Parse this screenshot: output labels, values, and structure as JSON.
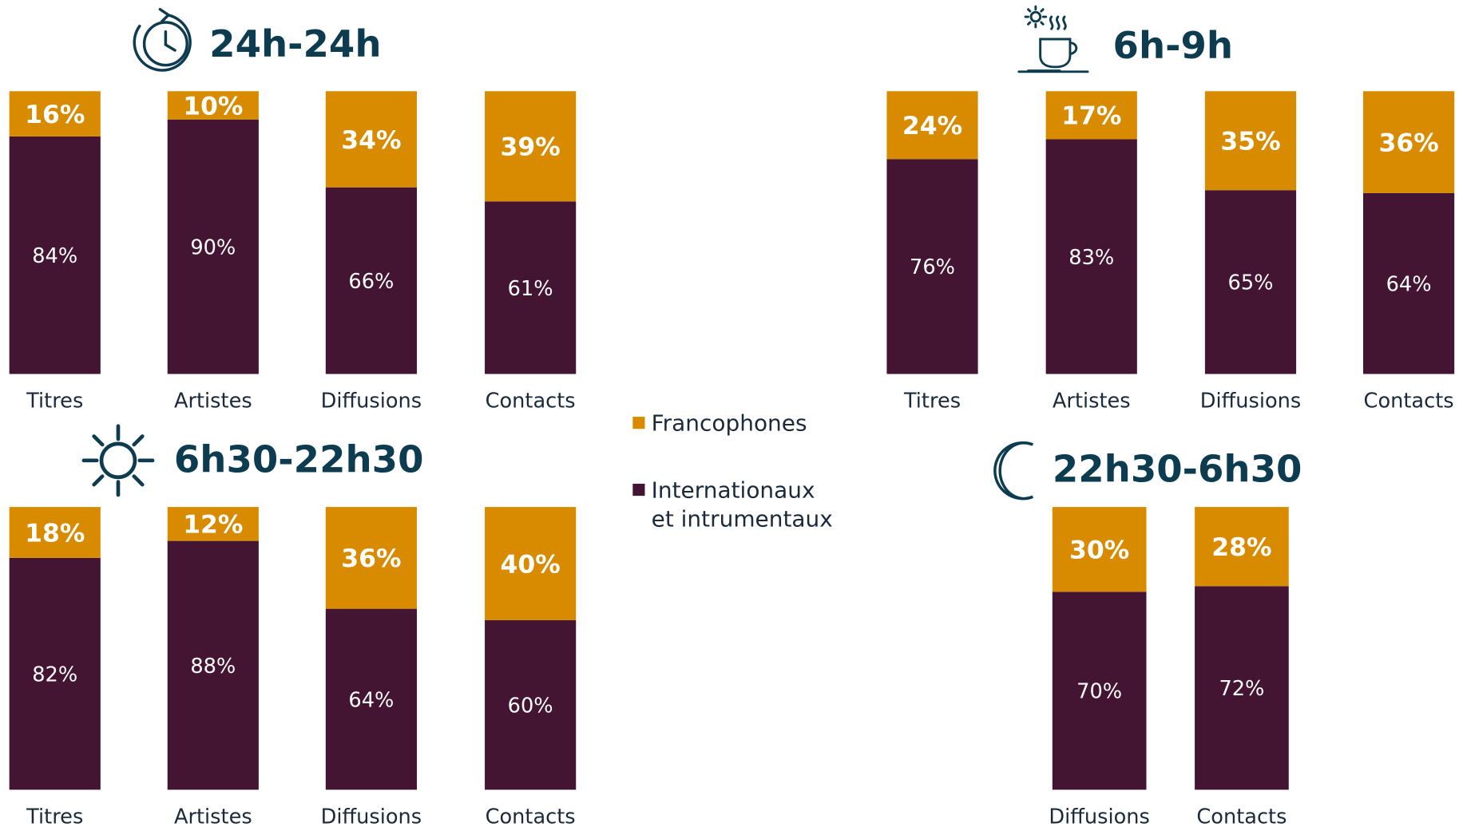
{
  "legend": [
    {
      "name": "Francophones",
      "color": "#d98b00"
    },
    {
      "name": "Internationaux",
      "name2": "et intrumentaux",
      "color": "#431532"
    }
  ],
  "chart_data": [
    {
      "type": "bar",
      "stacked": true,
      "title": "24h-24h",
      "ylim": [
        0,
        100
      ],
      "categories": [
        "Titres",
        "Artistes",
        "Diffusions",
        "Contacts"
      ],
      "series": [
        {
          "values": [
            16,
            10,
            34,
            39
          ],
          "value_labels": [
            "16%",
            "10%",
            "34%",
            "39%"
          ]
        },
        {
          "values": [
            84,
            90,
            66,
            61
          ],
          "value_labels": [
            "84%",
            "90%",
            "66%",
            "61%"
          ]
        }
      ]
    },
    {
      "type": "bar",
      "stacked": true,
      "title": "6h-9h",
      "ylim": [
        0,
        100
      ],
      "categories": [
        "Titres",
        "Artistes",
        "Diffusions",
        "Contacts"
      ],
      "series": [
        {
          "values": [
            24,
            17,
            35,
            36
          ],
          "value_labels": [
            "24%",
            "17%",
            "35%",
            "36%"
          ]
        },
        {
          "values": [
            76,
            83,
            65,
            64
          ],
          "value_labels": [
            "76%",
            "83%",
            "65%",
            "64%"
          ]
        }
      ]
    },
    {
      "type": "bar",
      "stacked": true,
      "title": "6h30-22h30",
      "ylim": [
        0,
        100
      ],
      "categories": [
        "Titres",
        "Artistes",
        "Diffusions",
        "Contacts"
      ],
      "series": [
        {
          "values": [
            18,
            12,
            36,
            40
          ],
          "value_labels": [
            "18%",
            "12%",
            "36%",
            "40%"
          ]
        },
        {
          "values": [
            82,
            88,
            64,
            60
          ],
          "value_labels": [
            "82%",
            "88%",
            "64%",
            "60%"
          ]
        }
      ]
    },
    {
      "type": "bar",
      "stacked": true,
      "title": "22h30-6h30",
      "ylim": [
        0,
        100
      ],
      "categories": [
        "Diffusions",
        "Contacts"
      ],
      "series": [
        {
          "values": [
            30,
            28
          ],
          "value_labels": [
            "30%",
            "28%"
          ]
        },
        {
          "values": [
            70,
            72
          ],
          "value_labels": [
            "70%",
            "72%"
          ]
        }
      ]
    }
  ]
}
